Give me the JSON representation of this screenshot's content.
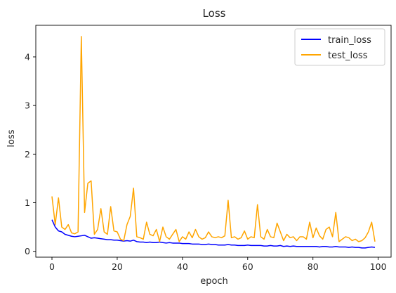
{
  "chart_data": {
    "type": "line",
    "title": "Loss",
    "xlabel": "epoch",
    "ylabel": "loss",
    "xlim": [
      -4.95,
      103.95
    ],
    "ylim": [
      -0.12,
      4.65
    ],
    "xticks": [
      0,
      20,
      40,
      60,
      80,
      100
    ],
    "yticks": [
      0,
      1,
      2,
      3,
      4
    ],
    "grid": false,
    "legend": {
      "position": "top-right"
    },
    "series": [
      {
        "name": "train_loss",
        "color": "#0000ff",
        "x": [
          0,
          1,
          2,
          3,
          4,
          5,
          6,
          7,
          8,
          9,
          10,
          11,
          12,
          13,
          14,
          15,
          16,
          17,
          18,
          19,
          20,
          21,
          22,
          23,
          24,
          25,
          26,
          27,
          28,
          29,
          30,
          31,
          32,
          33,
          34,
          35,
          36,
          37,
          38,
          39,
          40,
          41,
          42,
          43,
          44,
          45,
          46,
          47,
          48,
          49,
          50,
          51,
          52,
          53,
          54,
          55,
          56,
          57,
          58,
          59,
          60,
          61,
          62,
          63,
          64,
          65,
          66,
          67,
          68,
          69,
          70,
          71,
          72,
          73,
          74,
          75,
          76,
          77,
          78,
          79,
          80,
          81,
          82,
          83,
          84,
          85,
          86,
          87,
          88,
          89,
          90,
          91,
          92,
          93,
          94,
          95,
          96,
          97,
          98,
          99
        ],
        "values": [
          0.65,
          0.5,
          0.42,
          0.4,
          0.35,
          0.33,
          0.31,
          0.3,
          0.31,
          0.32,
          0.33,
          0.3,
          0.27,
          0.28,
          0.27,
          0.26,
          0.25,
          0.24,
          0.24,
          0.23,
          0.23,
          0.22,
          0.21,
          0.22,
          0.21,
          0.23,
          0.2,
          0.19,
          0.19,
          0.18,
          0.19,
          0.18,
          0.18,
          0.19,
          0.18,
          0.17,
          0.18,
          0.17,
          0.17,
          0.17,
          0.16,
          0.16,
          0.16,
          0.15,
          0.15,
          0.15,
          0.14,
          0.14,
          0.15,
          0.14,
          0.14,
          0.13,
          0.13,
          0.13,
          0.14,
          0.13,
          0.13,
          0.12,
          0.12,
          0.12,
          0.13,
          0.12,
          0.12,
          0.12,
          0.12,
          0.11,
          0.11,
          0.12,
          0.11,
          0.11,
          0.12,
          0.1,
          0.11,
          0.1,
          0.11,
          0.1,
          0.1,
          0.1,
          0.1,
          0.1,
          0.1,
          0.1,
          0.09,
          0.1,
          0.1,
          0.09,
          0.09,
          0.1,
          0.09,
          0.09,
          0.09,
          0.08,
          0.09,
          0.08,
          0.08,
          0.07,
          0.07,
          0.08,
          0.09,
          0.08
        ]
      },
      {
        "name": "test_loss",
        "color": "#ffa500",
        "x": [
          0,
          1,
          2,
          3,
          4,
          5,
          6,
          7,
          8,
          9,
          10,
          11,
          12,
          13,
          14,
          15,
          16,
          17,
          18,
          19,
          20,
          21,
          22,
          23,
          24,
          25,
          26,
          27,
          28,
          29,
          30,
          31,
          32,
          33,
          34,
          35,
          36,
          37,
          38,
          39,
          40,
          41,
          42,
          43,
          44,
          45,
          46,
          47,
          48,
          49,
          50,
          51,
          52,
          53,
          54,
          55,
          56,
          57,
          58,
          59,
          60,
          61,
          62,
          63,
          64,
          65,
          66,
          67,
          68,
          69,
          70,
          71,
          72,
          73,
          74,
          75,
          76,
          77,
          78,
          79,
          80,
          81,
          82,
          83,
          84,
          85,
          86,
          87,
          88,
          89,
          90,
          91,
          92,
          93,
          94,
          95,
          96,
          97,
          98,
          99
        ],
        "values": [
          1.13,
          0.55,
          1.1,
          0.5,
          0.45,
          0.55,
          0.38,
          0.36,
          0.4,
          4.42,
          0.8,
          1.4,
          1.45,
          0.35,
          0.45,
          0.88,
          0.4,
          0.35,
          0.92,
          0.42,
          0.4,
          0.25,
          0.22,
          0.55,
          0.72,
          1.3,
          0.3,
          0.28,
          0.25,
          0.6,
          0.35,
          0.32,
          0.45,
          0.2,
          0.5,
          0.3,
          0.25,
          0.35,
          0.45,
          0.2,
          0.3,
          0.25,
          0.4,
          0.28,
          0.45,
          0.3,
          0.25,
          0.28,
          0.4,
          0.3,
          0.28,
          0.3,
          0.28,
          0.32,
          1.05,
          0.28,
          0.3,
          0.25,
          0.28,
          0.42,
          0.25,
          0.3,
          0.28,
          0.96,
          0.3,
          0.25,
          0.45,
          0.3,
          0.28,
          0.58,
          0.4,
          0.22,
          0.35,
          0.28,
          0.3,
          0.22,
          0.3,
          0.3,
          0.25,
          0.6,
          0.28,
          0.48,
          0.32,
          0.25,
          0.45,
          0.5,
          0.3,
          0.8,
          0.2,
          0.25,
          0.3,
          0.28,
          0.22,
          0.25,
          0.2,
          0.22,
          0.28,
          0.4,
          0.6,
          0.2
        ]
      }
    ]
  }
}
